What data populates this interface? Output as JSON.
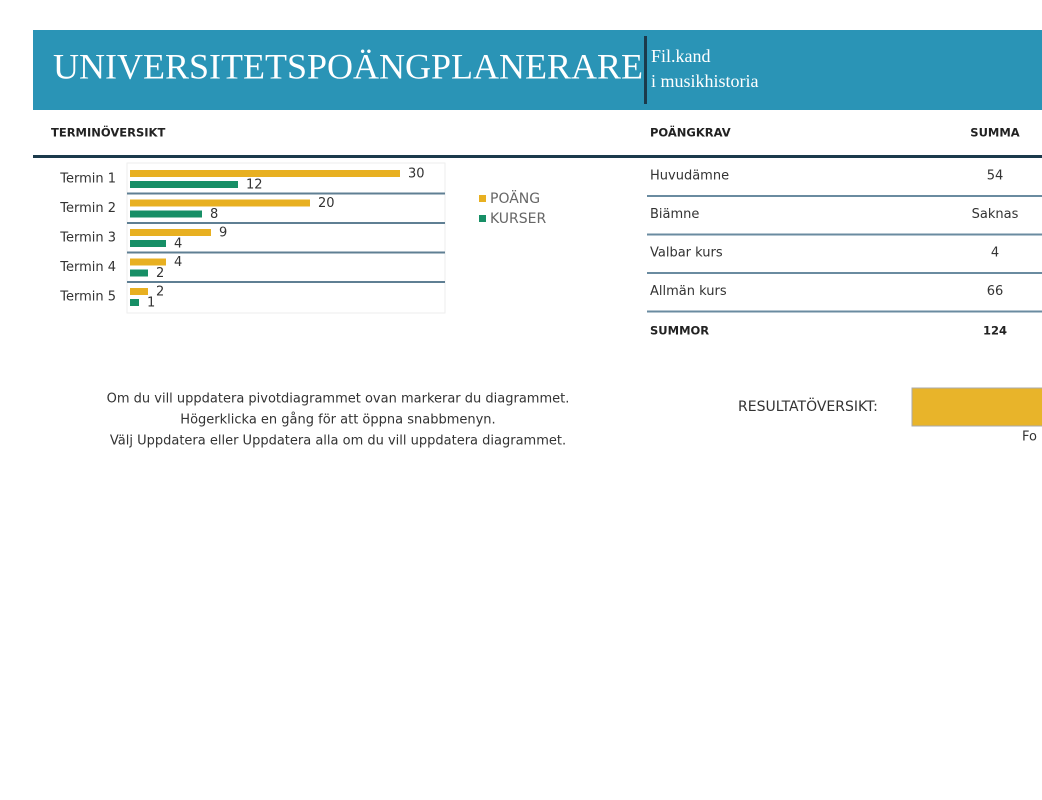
{
  "header": {
    "title": "UNIVERSITETSPOÄNGPLANERARE",
    "subtitle": [
      "Fil.kand",
      "i musikhistoria"
    ]
  },
  "overview": {
    "label": "TERMINÖVERSIKT"
  },
  "chart_data": {
    "type": "bar",
    "orientation": "horizontal",
    "categories": [
      "Termin 1",
      "Termin 2",
      "Termin 3",
      "Termin 4",
      "Termin 5"
    ],
    "series": [
      {
        "name": "POÄNG",
        "color": "#e8b021",
        "values": [
          30,
          20,
          9,
          4,
          2
        ]
      },
      {
        "name": "KURSER",
        "color": "#178f66",
        "values": [
          12,
          8,
          4,
          2,
          1
        ]
      }
    ],
    "legend": "right"
  },
  "requirements": {
    "columns": [
      "POÄNGKRAV",
      "SUMMA"
    ],
    "rows": [
      [
        "Huvudämne",
        "54"
      ],
      [
        "Biämne",
        "Saknas"
      ],
      [
        "Valbar kurs",
        "4"
      ],
      [
        "Allmän kurs",
        "66"
      ]
    ],
    "total": [
      "SUMMOR",
      "124"
    ]
  },
  "note": [
    "Om du vill uppdatera pivotdiagrammet ovan markerar du diagrammet.",
    "Högerklicka en gång för att öppna snabbmenyn.",
    "Välj Uppdatera eller Uppdatera alla om du vill uppdatera diagrammet."
  ],
  "result": {
    "label": "RESULTATÖVERSIKT:",
    "footer": "Fo"
  }
}
